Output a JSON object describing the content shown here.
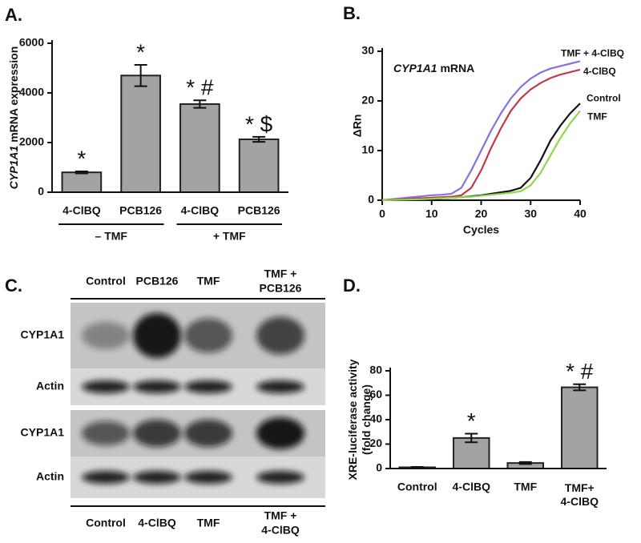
{
  "chart_data": [
    {
      "type": "bar",
      "panel": "A.",
      "ylabel": [
        "CYP1A1",
        "mRNA expression"
      ],
      "categories": [
        "4-ClBQ",
        "PCB126",
        "4-ClBQ",
        "PCB126"
      ],
      "values": [
        800,
        4700,
        3550,
        2130
      ],
      "errors": [
        40,
        430,
        150,
        100
      ],
      "annotations": [
        "*",
        "*",
        "* #",
        "* $"
      ],
      "groups": [
        "– TMF",
        "+ TMF"
      ],
      "color": "#a3a3a3",
      "ylim": [
        0,
        6000
      ],
      "yticks": [
        0,
        2000,
        4000,
        6000
      ]
    },
    {
      "type": "line",
      "panel": "B.",
      "annotation": [
        "CYP1A1",
        "mRNA"
      ],
      "xlabel": "Cycles",
      "ylabel": "ΔRn",
      "x": [
        0,
        2,
        4,
        6,
        8,
        10,
        12,
        14,
        16,
        18,
        20,
        22,
        24,
        26,
        28,
        30,
        32,
        34,
        36,
        38,
        40
      ],
      "series": [
        {
          "name": "TMF + 4-ClBQ",
          "color": "#8b6fe0",
          "values": [
            0,
            0.2,
            0.4,
            0.6,
            0.8,
            1.0,
            1.1,
            1.3,
            2.5,
            6,
            10,
            14,
            17.5,
            20.5,
            22.8,
            24.5,
            25.7,
            26.5,
            27,
            27.5,
            28
          ]
        },
        {
          "name": "4-ClBQ",
          "color": "#c0394a",
          "values": [
            0,
            0.1,
            0.2,
            0.3,
            0.4,
            0.5,
            0.6,
            0.7,
            1.0,
            2.5,
            6,
            10.5,
            14.5,
            18,
            20.5,
            22.3,
            23.6,
            24.6,
            25.3,
            25.8,
            26.3
          ]
        },
        {
          "name": "Control",
          "color": "#111111",
          "values": [
            0,
            0.05,
            0.1,
            0.15,
            0.2,
            0.3,
            0.4,
            0.5,
            0.6,
            0.8,
            1.0,
            1.3,
            1.6,
            1.9,
            2.5,
            4.5,
            8,
            12,
            15,
            17.5,
            19.5
          ]
        },
        {
          "name": "TMF",
          "color": "#8fd84a",
          "values": [
            0,
            0.05,
            0.1,
            0.15,
            0.2,
            0.3,
            0.4,
            0.5,
            0.6,
            0.7,
            0.9,
            1.1,
            1.3,
            1.5,
            1.8,
            3,
            5.5,
            9,
            12.5,
            15.5,
            18
          ]
        }
      ],
      "xlim": [
        0,
        40
      ],
      "xticks": [
        0,
        10,
        20,
        30,
        40
      ],
      "ylim": [
        0,
        30
      ],
      "yticks": [
        0,
        10,
        20,
        30
      ]
    },
    {
      "type": "bar",
      "panel": "D.",
      "ylabel": [
        "XRE-luciferase activity",
        "(fold change)"
      ],
      "categories": [
        "Control",
        "4-ClBQ",
        "TMF",
        [
          "TMF+",
          "4-ClBQ"
        ]
      ],
      "values": [
        1,
        25,
        4.5,
        66.5
      ],
      "errors": [
        0.3,
        3.5,
        0.8,
        2.5
      ],
      "annotations": [
        null,
        "*",
        null,
        "* #"
      ],
      "color": "#a3a3a3",
      "ylim": [
        0,
        80
      ],
      "yticks": [
        0,
        20,
        40,
        60,
        80
      ]
    }
  ],
  "blot": {
    "panel": "C.",
    "top": {
      "columns": [
        "Control",
        "PCB126",
        "TMF",
        [
          "TMF +",
          "PCB126"
        ]
      ],
      "rows": [
        "CYP1A1",
        "Actin"
      ]
    },
    "bottom": {
      "columns": [
        "Control",
        "4-ClBQ",
        "TMF",
        [
          "TMF +",
          "4-ClBQ"
        ]
      ],
      "rows": [
        "CYP1A1",
        "Actin"
      ]
    }
  }
}
